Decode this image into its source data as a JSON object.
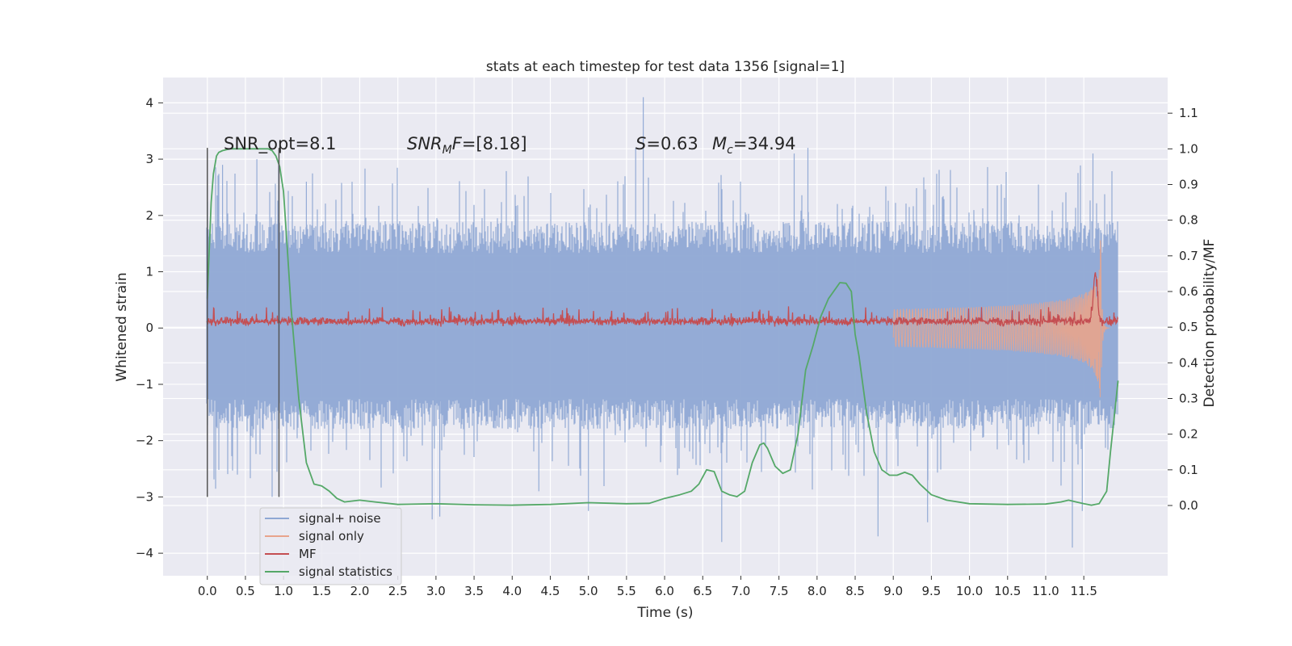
{
  "chart_data": {
    "type": "line",
    "title": "stats at each timestep for test data 1356 [signal=1]",
    "xlabel": "Time (s)",
    "ylabel_left": "Whitened strain",
    "ylabel_right": "Detection probability/MF",
    "xlim": [
      -0.58,
      12.6
    ],
    "ylim_left": [
      -4.4,
      4.45
    ],
    "ylim_right": [
      -0.197,
      1.2
    ],
    "x_ticks": [
      0.0,
      0.5,
      1.0,
      1.5,
      2.0,
      2.5,
      3.0,
      3.5,
      4.0,
      4.5,
      5.0,
      5.5,
      6.0,
      6.5,
      7.0,
      7.5,
      8.0,
      8.5,
      9.0,
      9.5,
      10.0,
      10.5,
      11.0,
      11.5
    ],
    "x_tick_labels": [
      "0.0",
      "0.5",
      "1.0",
      "1.5",
      "2.0",
      "2.5",
      "3.0",
      "3.5",
      "4.0",
      "4.5",
      "5.0",
      "5.5",
      "6.0",
      "6.5",
      "7.0",
      "7.5",
      "8.0",
      "8.5",
      "9.0",
      "9.5",
      "10.0",
      "10.5",
      "11.0",
      "11.5"
    ],
    "y_left_ticks": [
      -4,
      -3,
      -2,
      -1,
      0,
      1,
      2,
      3,
      4
    ],
    "y_left_tick_labels": [
      "−4",
      "−3",
      "−2",
      "−1",
      "0",
      "1",
      "2",
      "3",
      "4"
    ],
    "y_right_ticks": [
      0.0,
      0.1,
      0.2,
      0.3,
      0.4,
      0.5,
      0.6,
      0.7,
      0.8,
      0.9,
      1.0,
      1.1
    ],
    "y_right_tick_labels": [
      "0.0",
      "0.1",
      "0.2",
      "0.3",
      "0.4",
      "0.5",
      "0.6",
      "0.7",
      "0.8",
      "0.9",
      "1.0",
      "1.1"
    ],
    "grid": true,
    "legend_position": "lower-left",
    "annotations": {
      "snr_opt": "SNR_opt=8.1",
      "snr_mf": "SNR_MF=[8.18]",
      "s_value": "S=0.63",
      "mc_value": "M_c=34.94"
    },
    "vertical_markers": [
      {
        "x": 0.0,
        "ymin": -3.0,
        "ymax": 3.2
      },
      {
        "x": 0.94,
        "ymin": -3.0,
        "ymax": 3.2
      }
    ],
    "series": [
      {
        "name": "signal+ noise",
        "axis": "left",
        "color": "#8fa8d4",
        "description_of_envelope": {
          "x_range": [
            0.0,
            11.95
          ],
          "typical_range": [
            -1.8,
            1.9
          ],
          "peaks": [
            {
              "x": 0.2,
              "y": 2.9
            },
            {
              "x": 0.65,
              "y": 3.0
            },
            {
              "x": 0.85,
              "y": -3.0
            },
            {
              "x": 1.3,
              "y": 2.6
            },
            {
              "x": 2.95,
              "y": -3.4
            },
            {
              "x": 3.05,
              "y": -3.35
            },
            {
              "x": 4.35,
              "y": -2.9
            },
            {
              "x": 5.0,
              "y": -3.25
            },
            {
              "x": 5.62,
              "y": 3.2
            },
            {
              "x": 5.72,
              "y": 4.1
            },
            {
              "x": 6.75,
              "y": -3.8
            },
            {
              "x": 7.7,
              "y": 3.1
            },
            {
              "x": 7.88,
              "y": 3.2
            },
            {
              "x": 8.8,
              "y": -3.7
            },
            {
              "x": 9.45,
              "y": -3.45
            },
            {
              "x": 11.35,
              "y": -3.9
            },
            {
              "x": 11.48,
              "y": -3.25
            },
            {
              "x": 11.62,
              "y": 3.1
            }
          ]
        }
      },
      {
        "name": "signal only",
        "axis": "left",
        "color": "#e8a48c",
        "chirp": {
          "t_start": 9.0,
          "t_merger": 11.72,
          "max_amplitude": 1.7
        }
      },
      {
        "name": "MF",
        "axis": "left",
        "color": "#c44e52",
        "baseline_range": [
          0.0,
          0.3
        ],
        "peak": {
          "x": 11.65,
          "y": 1.0
        }
      },
      {
        "name": "signal statistics",
        "axis": "right",
        "color": "#55a868",
        "x": [
          0.0,
          0.05,
          0.08,
          0.12,
          0.15,
          0.2,
          0.3,
          0.5,
          0.7,
          0.8,
          0.85,
          0.9,
          0.95,
          1.0,
          1.05,
          1.1,
          1.2,
          1.3,
          1.4,
          1.5,
          1.6,
          1.7,
          1.8,
          2.0,
          2.2,
          2.5,
          3.0,
          3.5,
          4.0,
          4.5,
          5.0,
          5.5,
          5.8,
          6.0,
          6.2,
          6.35,
          6.45,
          6.55,
          6.65,
          6.75,
          6.85,
          6.95,
          7.05,
          7.15,
          7.25,
          7.3,
          7.35,
          7.45,
          7.55,
          7.65,
          7.75,
          7.85,
          7.95,
          8.05,
          8.15,
          8.25,
          8.3,
          8.38,
          8.45,
          8.5,
          8.55,
          8.65,
          8.75,
          8.85,
          8.95,
          9.05,
          9.15,
          9.25,
          9.35,
          9.5,
          9.7,
          10.0,
          10.5,
          11.0,
          11.2,
          11.3,
          11.4,
          11.5,
          11.6,
          11.7,
          11.8,
          11.85,
          11.9,
          11.95
        ],
        "y": [
          0.58,
          0.85,
          0.93,
          0.98,
          0.99,
          0.995,
          1.0,
          1.0,
          1.0,
          1.0,
          0.995,
          0.98,
          0.95,
          0.88,
          0.72,
          0.55,
          0.3,
          0.12,
          0.06,
          0.055,
          0.04,
          0.02,
          0.01,
          0.015,
          0.01,
          0.003,
          0.005,
          0.002,
          0.001,
          0.003,
          0.008,
          0.005,
          0.006,
          0.02,
          0.03,
          0.04,
          0.06,
          0.1,
          0.095,
          0.04,
          0.03,
          0.025,
          0.04,
          0.12,
          0.17,
          0.175,
          0.16,
          0.11,
          0.09,
          0.1,
          0.2,
          0.38,
          0.45,
          0.53,
          0.58,
          0.61,
          0.625,
          0.623,
          0.6,
          0.48,
          0.42,
          0.26,
          0.15,
          0.1,
          0.085,
          0.085,
          0.093,
          0.085,
          0.06,
          0.03,
          0.015,
          0.005,
          0.003,
          0.004,
          0.01,
          0.015,
          0.01,
          0.005,
          0.001,
          0.005,
          0.04,
          0.15,
          0.25,
          0.35
        ]
      }
    ]
  }
}
